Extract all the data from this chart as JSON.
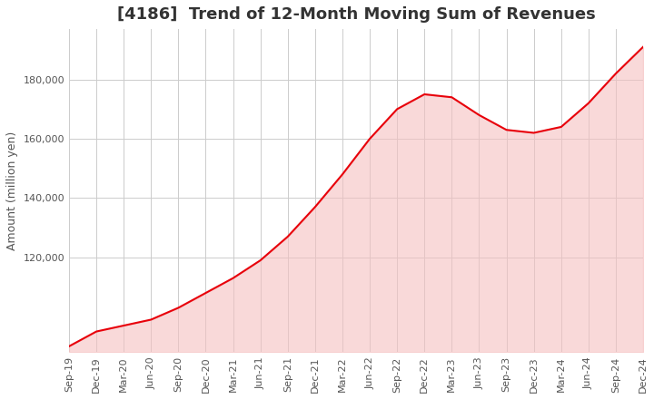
{
  "title": "[4186]  Trend of 12-Month Moving Sum of Revenues",
  "ylabel": "Amount (million yen)",
  "line_color": "#e8000a",
  "fill_color": "#f5c0c0",
  "background_color": "#ffffff",
  "grid_color": "#cccccc",
  "x_labels": [
    "Sep-19",
    "Dec-19",
    "Mar-20",
    "Jun-20",
    "Sep-20",
    "Dec-20",
    "Mar-21",
    "Jun-21",
    "Sep-21",
    "Dec-21",
    "Mar-22",
    "Jun-22",
    "Sep-22",
    "Dec-22",
    "Mar-23",
    "Jun-23",
    "Sep-23",
    "Dec-23",
    "Mar-24",
    "Jun-24",
    "Sep-24",
    "Dec-24"
  ],
  "values": [
    90000,
    95000,
    97000,
    99000,
    103000,
    108000,
    113000,
    119000,
    127000,
    137000,
    148000,
    160000,
    170000,
    175000,
    174000,
    168000,
    163000,
    162000,
    164000,
    172000,
    182000,
    191000
  ],
  "ylim": [
    88000,
    197000
  ],
  "yticks": [
    120000,
    140000,
    160000,
    180000
  ],
  "title_fontsize": 13,
  "axis_fontsize": 9,
  "tick_fontsize": 8,
  "title_color": "#333333",
  "label_color": "#555555"
}
